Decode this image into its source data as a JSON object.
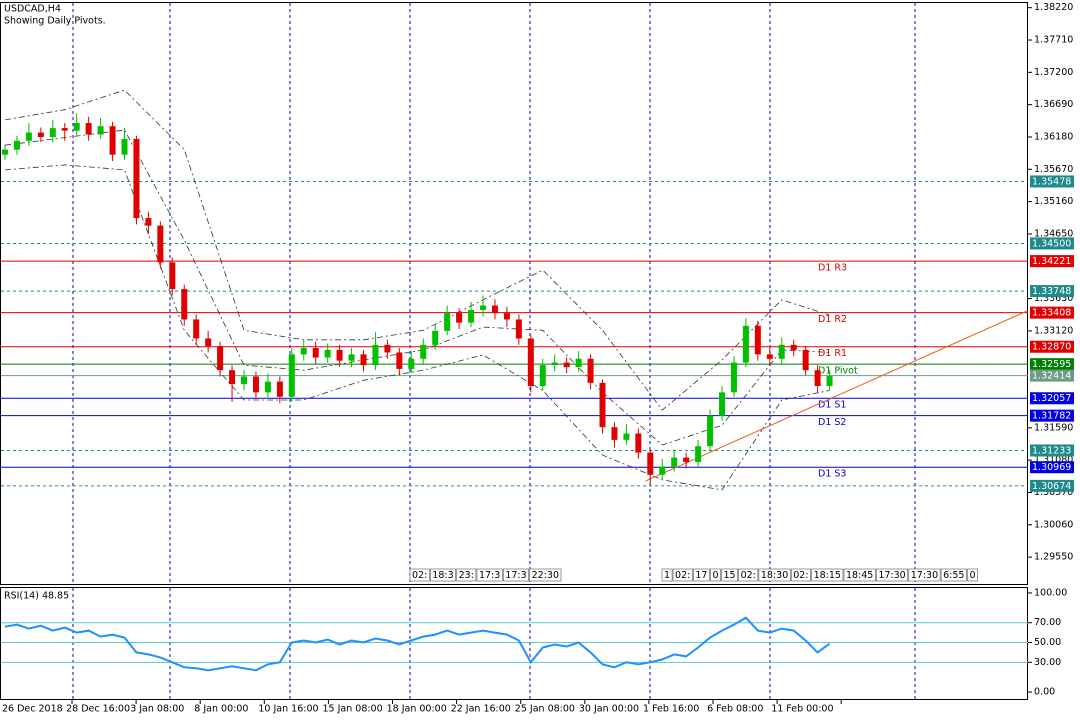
{
  "chart_data": [
    {
      "type": "candlestick",
      "title": "USDCAD,H4",
      "subtitle": "Showing Daily Pivots.",
      "bull_color": "#00c000",
      "bear_color": "#e00000",
      "open": [
        1.359,
        1.3598,
        1.3612,
        1.3625,
        1.3618,
        1.3632,
        1.3628,
        1.364,
        1.3622,
        1.3635,
        1.359,
        1.3615,
        1.349,
        1.3478,
        1.342,
        1.3378,
        1.333,
        1.33,
        1.3288,
        1.325,
        1.3228,
        1.324,
        1.3215,
        1.3232,
        1.3208,
        1.3275,
        1.3285,
        1.327,
        1.3282,
        1.3265,
        1.3275,
        1.3258,
        1.329,
        1.3278,
        1.3252,
        1.3268,
        1.329,
        1.3312,
        1.334,
        1.3325,
        1.3345,
        1.3352,
        1.334,
        1.333,
        1.33,
        1.3225,
        1.3258,
        1.3262,
        1.3255,
        1.3268,
        1.323,
        1.316,
        1.314,
        1.315,
        1.312,
        1.3085,
        1.3098,
        1.3112,
        1.3105,
        1.313,
        1.3178,
        1.3215,
        1.3262,
        1.332,
        1.3275,
        1.3268,
        1.329,
        1.3282,
        1.325,
        1.3225
      ],
      "high": [
        1.3606,
        1.362,
        1.364,
        1.3633,
        1.3645,
        1.364,
        1.3655,
        1.365,
        1.3648,
        1.3642,
        1.3632,
        1.362,
        1.35,
        1.3485,
        1.3428,
        1.3385,
        1.3338,
        1.3312,
        1.3295,
        1.3258,
        1.325,
        1.3248,
        1.3245,
        1.324,
        1.3285,
        1.3298,
        1.3295,
        1.3292,
        1.329,
        1.3285,
        1.3282,
        1.331,
        1.3298,
        1.3285,
        1.328,
        1.33,
        1.3322,
        1.3352,
        1.3348,
        1.3358,
        1.3368,
        1.3362,
        1.335,
        1.3338,
        1.3305,
        1.3268,
        1.3275,
        1.327,
        1.328,
        1.3275,
        1.3235,
        1.3168,
        1.3165,
        1.3158,
        1.3125,
        1.311,
        1.3125,
        1.312,
        1.314,
        1.3188,
        1.3225,
        1.3272,
        1.3332,
        1.3328,
        1.3285,
        1.3302,
        1.3298,
        1.3288,
        1.3258,
        1.325
      ],
      "low": [
        1.3582,
        1.359,
        1.3604,
        1.361,
        1.361,
        1.3612,
        1.362,
        1.3612,
        1.3615,
        1.358,
        1.3582,
        1.348,
        1.3465,
        1.341,
        1.3368,
        1.332,
        1.329,
        1.3278,
        1.324,
        1.32,
        1.3218,
        1.3205,
        1.3205,
        1.3198,
        1.32,
        1.3265,
        1.326,
        1.3262,
        1.3255,
        1.3255,
        1.3248,
        1.325,
        1.3268,
        1.3242,
        1.3245,
        1.326,
        1.3282,
        1.3305,
        1.3315,
        1.3318,
        1.3335,
        1.333,
        1.3318,
        1.329,
        1.3215,
        1.3218,
        1.3248,
        1.3245,
        1.3248,
        1.322,
        1.315,
        1.3128,
        1.3132,
        1.311,
        1.307,
        1.3078,
        1.309,
        1.3095,
        1.3098,
        1.3122,
        1.317,
        1.3208,
        1.3255,
        1.3265,
        1.3258,
        1.326,
        1.3272,
        1.3242,
        1.3215,
        1.3218
      ],
      "close": [
        1.3598,
        1.3612,
        1.3625,
        1.3618,
        1.3632,
        1.3628,
        1.364,
        1.3622,
        1.3635,
        1.359,
        1.3615,
        1.349,
        1.3478,
        1.342,
        1.3378,
        1.333,
        1.33,
        1.3288,
        1.325,
        1.3228,
        1.324,
        1.3215,
        1.3232,
        1.3208,
        1.3275,
        1.3285,
        1.327,
        1.3282,
        1.3265,
        1.3275,
        1.3258,
        1.329,
        1.3278,
        1.3252,
        1.3268,
        1.329,
        1.3312,
        1.334,
        1.3325,
        1.3345,
        1.3352,
        1.334,
        1.333,
        1.33,
        1.3225,
        1.3258,
        1.3262,
        1.3255,
        1.3268,
        1.323,
        1.316,
        1.314,
        1.315,
        1.312,
        1.3085,
        1.3098,
        1.3112,
        1.3105,
        1.313,
        1.3178,
        1.3215,
        1.3262,
        1.332,
        1.3275,
        1.3268,
        1.329,
        1.3282,
        1.325,
        1.3225,
        1.3241
      ],
      "bands": {
        "color": "#333333",
        "x": [
          0,
          5,
          10,
          15,
          20,
          25,
          30,
          35,
          40,
          45,
          50,
          55,
          60,
          65,
          69
        ],
        "upper": [
          1.3645,
          1.3661,
          1.3692,
          1.3598,
          1.3313,
          1.3298,
          1.3298,
          1.3313,
          1.3361,
          1.3408,
          1.3313,
          1.3187,
          1.3266,
          1.3361,
          1.3337
        ],
        "middle": [
          1.3605,
          1.3617,
          1.3629,
          1.3455,
          1.3258,
          1.325,
          1.3266,
          1.3282,
          1.3318,
          1.3313,
          1.3215,
          1.3132,
          1.3163,
          1.3282,
          1.3278
        ],
        "lower": [
          1.3566,
          1.3574,
          1.3566,
          1.3313,
          1.3203,
          1.3203,
          1.3234,
          1.325,
          1.3274,
          1.3218,
          1.3116,
          1.3077,
          1.3061,
          1.3203,
          1.3218
        ]
      },
      "trendline": {
        "color": "#e8601c",
        "x": [
          53.6,
          85.6
        ],
        "y": [
          1.3075,
          1.3344
        ]
      },
      "ylim": [
        1.2911,
        1.3831
      ],
      "yticks": [
        {
          "value": 1.3822,
          "label": "1.38220"
        },
        {
          "value": 1.3771,
          "label": "1.37710"
        },
        {
          "value": 1.372,
          "label": "1.37200"
        },
        {
          "value": 1.3669,
          "label": "1.36690"
        },
        {
          "value": 1.3618,
          "label": "1.36180"
        },
        {
          "value": 1.3567,
          "label": "1.35670"
        },
        {
          "value": 1.3516,
          "label": "1.35160"
        },
        {
          "value": 1.3465,
          "label": "1.34650"
        },
        {
          "value": 1.3363,
          "label": "1.33630"
        },
        {
          "value": 1.3312,
          "label": "1.33120"
        },
        {
          "value": 1.3159,
          "label": "1.31590"
        },
        {
          "value": 1.3108,
          "label": "1.31080"
        },
        {
          "value": 1.3057,
          "label": "1.30570"
        },
        {
          "value": 1.3006,
          "label": "1.30060"
        },
        {
          "value": 1.2955,
          "label": "1.29550"
        }
      ],
      "levels": [
        {
          "value": 1.35478,
          "color": "#1e8a8a",
          "style": "dashed"
        },
        {
          "value": 1.345,
          "value_label": "1.34500",
          "color": "#1e8a8a",
          "style": "dashed"
        },
        {
          "value": 1.34221,
          "color": "#e00000",
          "style": "solid",
          "name": "D1 R3"
        },
        {
          "value": 1.33748,
          "color": "#1e8a8a",
          "style": "dashed"
        },
        {
          "value": 1.33408,
          "color": "#e00000",
          "style": "solid",
          "name": "D1 R2"
        },
        {
          "value": 1.3287,
          "value_label": "1.32870",
          "color": "#e00000",
          "style": "solid",
          "name": "D1 R1"
        },
        {
          "value": 1.32595,
          "color": "#008000",
          "style": "solid",
          "name": "D1 Pivot"
        },
        {
          "value": 1.32414,
          "color": "#6f9a86",
          "style": "solid"
        },
        {
          "value": 1.32057,
          "color": "#0000e0",
          "style": "solid",
          "name": "D1 S1"
        },
        {
          "value": 1.31782,
          "color": "#0000e0",
          "style": "solid",
          "name": "D1 S2"
        },
        {
          "value": 1.31233,
          "color": "#1e8a8a",
          "style": "dashed"
        },
        {
          "value": 1.30969,
          "color": "#0000e0",
          "style": "solid",
          "name": "D1 S3"
        },
        {
          "value": 1.30674,
          "color": "#1e8a8a",
          "style": "dashed"
        }
      ],
      "time_markers": [
        [
          "02:",
          "18:3",
          "23:",
          "17:3",
          "17:3",
          "22:30"
        ],
        [
          "1",
          "02:",
          "17",
          "0",
          "15",
          "02:",
          "18:30",
          "02:",
          "18:15",
          "18:45",
          "17:30",
          "17:30",
          "6:55",
          "0"
        ]
      ],
      "x_labels": [
        "26 Dec 2018",
        "28 Dec 16:00",
        "3 Jan 08:00",
        "8 Jan 00:00",
        "10 Jan 16:00",
        "15 Jan 08:00",
        "18 Jan 00:00",
        "22 Jan 16:00",
        "25 Jan 08:00",
        "30 Jan 00:00",
        "1 Feb 16:00",
        "6 Feb 08:00",
        "11 Feb 00:00"
      ]
    },
    {
      "type": "line",
      "title": "RSI(14) 48.85",
      "color": "#1e90ff",
      "level_color": "#5cc6d0",
      "values": [
        66,
        68,
        64,
        67,
        62,
        65,
        60,
        62,
        56,
        58,
        55,
        40,
        38,
        35,
        30,
        25,
        24,
        22,
        24,
        26,
        24,
        22,
        28,
        30,
        50,
        52,
        50,
        53,
        48,
        52,
        50,
        54,
        52,
        48,
        52,
        56,
        58,
        62,
        58,
        60,
        62,
        60,
        58,
        52,
        30,
        45,
        48,
        46,
        50,
        40,
        28,
        25,
        30,
        28,
        30,
        33,
        38,
        36,
        45,
        55,
        62,
        68,
        75,
        62,
        60,
        64,
        62,
        52,
        40,
        48.85
      ],
      "levels": [
        70,
        50,
        30
      ],
      "ylim": [
        -8,
        105
      ],
      "yticks": [
        {
          "value": 100,
          "label": "100.00"
        },
        {
          "value": 70,
          "label": "70.00"
        },
        {
          "value": 50,
          "label": "50.00"
        },
        {
          "value": 30,
          "label": "30.00"
        },
        {
          "value": 0,
          "label": "0.00"
        }
      ]
    }
  ]
}
